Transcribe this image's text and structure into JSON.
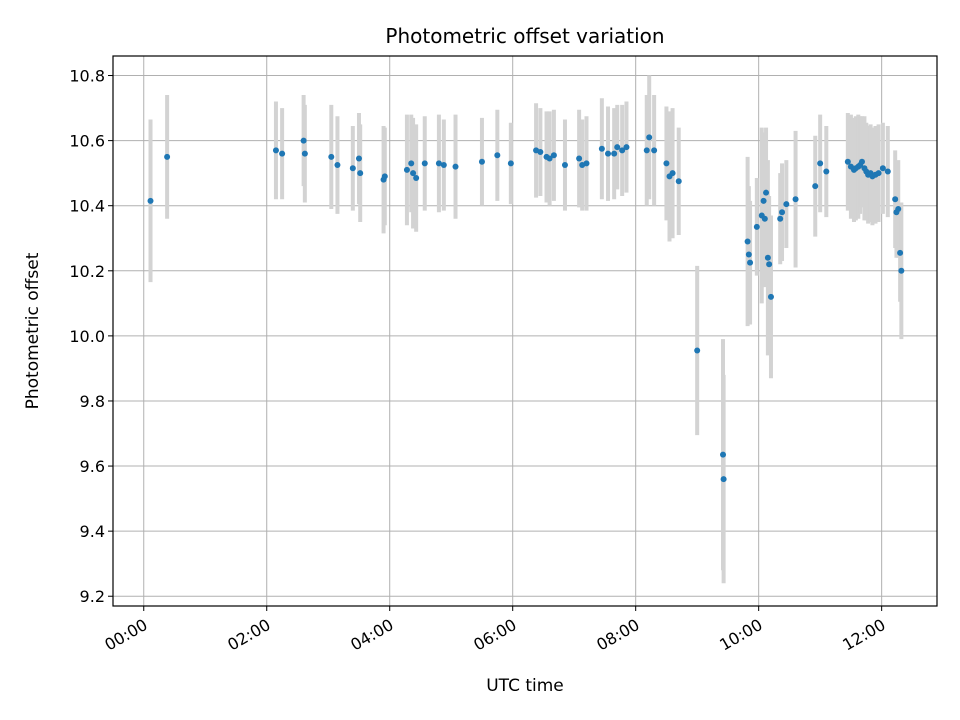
{
  "chart_data": {
    "type": "scatter",
    "title": "Photometric offset variation",
    "xlabel": "UTC time",
    "ylabel": "Photometric offset",
    "x_ticks": [
      "00:00",
      "02:00",
      "04:00",
      "06:00",
      "08:00",
      "10:00",
      "12:00"
    ],
    "y_ticks": [
      "9.2",
      "9.4",
      "9.6",
      "9.8",
      "10.0",
      "10.2",
      "10.4",
      "10.6",
      "10.8"
    ],
    "x_unit": "hours UTC",
    "xlim": [
      -0.5,
      12.9
    ],
    "ylim": [
      9.17,
      10.86
    ],
    "grid": true,
    "marker_color": "#1f77b4",
    "errorbar_color": "#d3d3d3",
    "points": [
      [
        0.11,
        10.415,
        0.25
      ],
      [
        0.38,
        10.55,
        0.19
      ],
      [
        2.15,
        10.57,
        0.15
      ],
      [
        2.25,
        10.56,
        0.14
      ],
      [
        2.6,
        10.6,
        0.14
      ],
      [
        2.62,
        10.56,
        0.15
      ],
      [
        3.05,
        10.55,
        0.16
      ],
      [
        3.15,
        10.525,
        0.15
      ],
      [
        3.4,
        10.515,
        0.13
      ],
      [
        3.5,
        10.545,
        0.14
      ],
      [
        3.52,
        10.5,
        0.15
      ],
      [
        3.9,
        10.48,
        0.165
      ],
      [
        3.92,
        10.49,
        0.15
      ],
      [
        4.28,
        10.51,
        0.17
      ],
      [
        4.35,
        10.53,
        0.15
      ],
      [
        4.38,
        10.5,
        0.17
      ],
      [
        4.43,
        10.485,
        0.165
      ],
      [
        4.57,
        10.53,
        0.145
      ],
      [
        4.8,
        10.53,
        0.15
      ],
      [
        4.88,
        10.525,
        0.14
      ],
      [
        5.07,
        10.52,
        0.16
      ],
      [
        5.5,
        10.535,
        0.135
      ],
      [
        5.75,
        10.555,
        0.14
      ],
      [
        5.97,
        10.53,
        0.125
      ],
      [
        6.38,
        10.57,
        0.145
      ],
      [
        6.45,
        10.565,
        0.135
      ],
      [
        6.55,
        10.55,
        0.14
      ],
      [
        6.6,
        10.545,
        0.145
      ],
      [
        6.67,
        10.555,
        0.14
      ],
      [
        6.85,
        10.525,
        0.14
      ],
      [
        7.08,
        10.545,
        0.15
      ],
      [
        7.13,
        10.525,
        0.14
      ],
      [
        7.2,
        10.53,
        0.145
      ],
      [
        7.45,
        10.575,
        0.155
      ],
      [
        7.55,
        10.56,
        0.145
      ],
      [
        7.65,
        10.56,
        0.14
      ],
      [
        7.7,
        10.58,
        0.13
      ],
      [
        7.78,
        10.57,
        0.14
      ],
      [
        7.85,
        10.58,
        0.14
      ],
      [
        8.18,
        10.57,
        0.17
      ],
      [
        8.22,
        10.61,
        0.19
      ],
      [
        8.3,
        10.57,
        0.17
      ],
      [
        8.5,
        10.53,
        0.175
      ],
      [
        8.55,
        10.49,
        0.2
      ],
      [
        8.6,
        10.5,
        0.2
      ],
      [
        8.7,
        10.475,
        0.165
      ],
      [
        9.0,
        9.955,
        0.26
      ],
      [
        9.42,
        9.635,
        0.355
      ],
      [
        9.43,
        9.56,
        0.32
      ],
      [
        9.82,
        10.29,
        0.26
      ],
      [
        9.84,
        10.25,
        0.21
      ],
      [
        9.86,
        10.225,
        0.19
      ],
      [
        9.97,
        10.335,
        0.15
      ],
      [
        10.05,
        10.37,
        0.27
      ],
      [
        10.08,
        10.415,
        0.21
      ],
      [
        10.1,
        10.36,
        0.21
      ],
      [
        10.12,
        10.44,
        0.2
      ],
      [
        10.15,
        10.24,
        0.3
      ],
      [
        10.17,
        10.22,
        0.21
      ],
      [
        10.2,
        10.12,
        0.25
      ],
      [
        10.35,
        10.36,
        0.14
      ],
      [
        10.38,
        10.38,
        0.15
      ],
      [
        10.45,
        10.405,
        0.135
      ],
      [
        10.6,
        10.42,
        0.21
      ],
      [
        10.92,
        10.46,
        0.155
      ],
      [
        11.0,
        10.53,
        0.15
      ],
      [
        11.1,
        10.505,
        0.14
      ],
      [
        11.45,
        10.535,
        0.15
      ],
      [
        11.5,
        10.52,
        0.16
      ],
      [
        11.55,
        10.51,
        0.16
      ],
      [
        11.58,
        10.515,
        0.16
      ],
      [
        11.62,
        10.52,
        0.16
      ],
      [
        11.65,
        10.525,
        0.15
      ],
      [
        11.68,
        10.535,
        0.14
      ],
      [
        11.72,
        10.515,
        0.16
      ],
      [
        11.75,
        10.505,
        0.15
      ],
      [
        11.78,
        10.495,
        0.15
      ],
      [
        11.82,
        10.5,
        0.15
      ],
      [
        11.85,
        10.49,
        0.15
      ],
      [
        11.9,
        10.495,
        0.15
      ],
      [
        11.95,
        10.5,
        0.15
      ],
      [
        12.02,
        10.515,
        0.14
      ],
      [
        12.1,
        10.505,
        0.14
      ],
      [
        12.22,
        10.42,
        0.15
      ],
      [
        12.24,
        10.38,
        0.14
      ],
      [
        12.27,
        10.39,
        0.15
      ],
      [
        12.3,
        10.255,
        0.15
      ],
      [
        12.32,
        10.2,
        0.21
      ]
    ]
  }
}
